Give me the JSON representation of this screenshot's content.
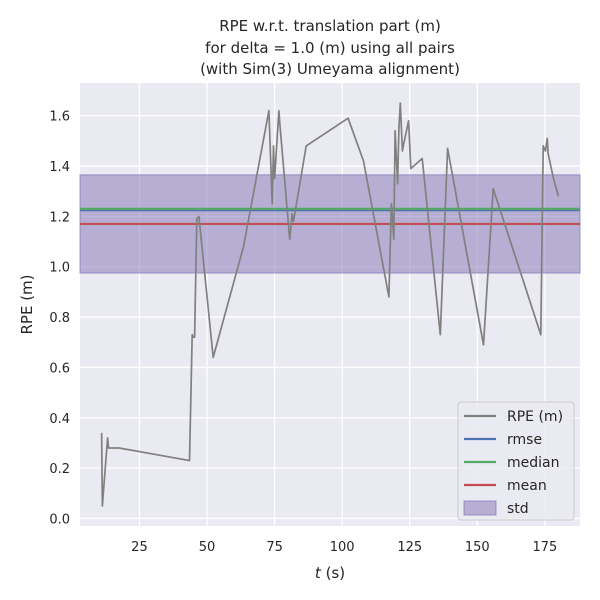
{
  "chart_data": {
    "type": "line",
    "title_lines": [
      "RPE w.r.t. translation part (m)",
      "for delta = 1.0 (m) using all pairs",
      "(with Sim(3) Umeyama alignment)"
    ],
    "xlabel_italic": "t",
    "xlabel_rest": " (s)",
    "ylabel": "RPE (m)",
    "xlim": [
      3,
      188
    ],
    "ylim": [
      -0.03,
      1.73
    ],
    "xticks": [
      25,
      50,
      75,
      100,
      125,
      150,
      175
    ],
    "yticks": [
      0.0,
      0.2,
      0.4,
      0.6,
      0.8,
      1.0,
      1.2,
      1.4,
      1.6
    ],
    "ytick_labels": [
      "0.0",
      "0.2",
      "0.4",
      "0.6",
      "0.8",
      "1.0",
      "1.2",
      "1.4",
      "1.6"
    ],
    "grid": true,
    "legend_position": "lower-right",
    "series": [
      {
        "name": "RPE (m)",
        "color": "#808080",
        "x": [
          11.0,
          11.3,
          11.7,
          13.2,
          13.6,
          14.2,
          17.5,
          43.5,
          44.5,
          44.9,
          45.4,
          46.2,
          47.0,
          52.3,
          63.5,
          72.9,
          74.1,
          74.6,
          75.0,
          76.6,
          77.0,
          80.6,
          81.5,
          82.0,
          86.7,
          102.2,
          107.9,
          117.3,
          118.2,
          119.1,
          119.6,
          120.5,
          121.0,
          121.5,
          122.3,
          122.8,
          124.6,
          125.4,
          129.6,
          136.3,
          139.0,
          152.3,
          155.9,
          173.5,
          174.4,
          175.2,
          175.9,
          176.2,
          178.2,
          180.0
        ],
        "values": [
          0.34,
          0.05,
          0.11,
          0.32,
          0.28,
          0.28,
          0.28,
          0.23,
          0.73,
          0.72,
          0.72,
          1.19,
          1.2,
          0.64,
          1.08,
          1.62,
          1.25,
          1.48,
          1.35,
          1.62,
          1.56,
          1.11,
          1.21,
          1.18,
          1.48,
          1.59,
          1.42,
          0.88,
          1.25,
          1.11,
          1.54,
          1.33,
          1.55,
          1.65,
          1.46,
          1.49,
          1.58,
          1.39,
          1.43,
          0.73,
          1.47,
          0.69,
          1.31,
          0.73,
          1.48,
          1.46,
          1.51,
          1.45,
          1.35,
          1.28
        ]
      }
    ],
    "stats": {
      "rmse": 1.225,
      "median": 1.23,
      "mean": 1.17,
      "std": 0.195
    },
    "colors": {
      "rmse": "#4c72b0",
      "median": "#55a868",
      "mean": "#c44e52",
      "std_fill": "#8172b3",
      "plot_bg": "#eaeaf2",
      "grid": "#ffffff"
    },
    "legend": [
      {
        "label": "RPE (m)",
        "kind": "line",
        "color": "#808080"
      },
      {
        "label": "rmse",
        "kind": "line",
        "color": "#4c72b0"
      },
      {
        "label": "median",
        "kind": "line",
        "color": "#55a868"
      },
      {
        "label": "mean",
        "kind": "line",
        "color": "#c44e52"
      },
      {
        "label": "std",
        "kind": "patch",
        "color": "#8172b3"
      }
    ]
  }
}
